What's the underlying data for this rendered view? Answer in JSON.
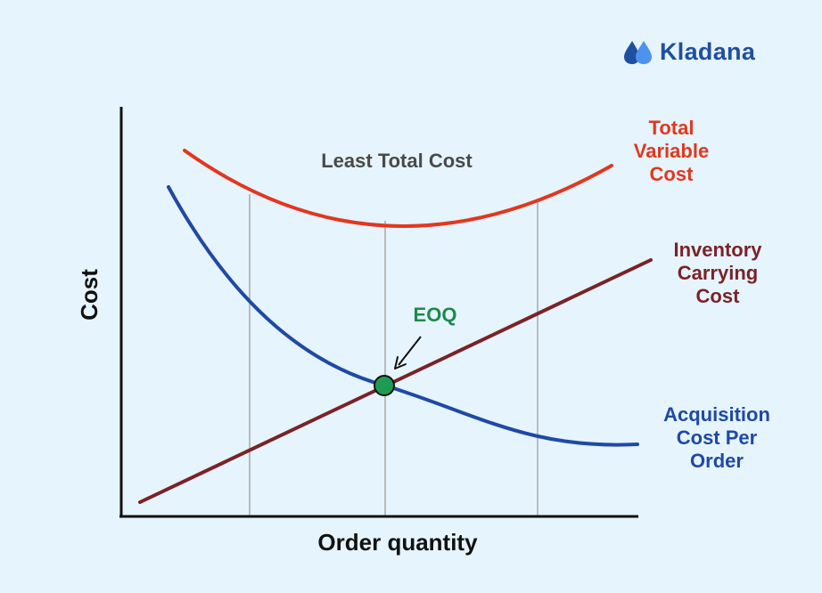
{
  "brand": {
    "name": "Kladana",
    "color": "#1f4fa0"
  },
  "chart_data": {
    "type": "line",
    "xlabel": "Order quantity",
    "ylabel": "Cost",
    "annotation": "Least Total Cost",
    "point_label": "EOQ",
    "grid": false,
    "legend": "inline-right",
    "series": [
      {
        "name": "Total Variable Cost",
        "label_lines": [
          "Total",
          "Variable",
          "Cost"
        ],
        "color": "#e2371e"
      },
      {
        "name": "Inventory Carrying Cost",
        "label_lines": [
          "Inventory",
          "Carrying",
          "Cost"
        ],
        "color": "#7a2327"
      },
      {
        "name": "Acquisition Cost Per Order",
        "label_lines": [
          "Acquisition",
          "Cost Per",
          "Order"
        ],
        "color": "#1f49a6"
      }
    ],
    "colors": {
      "eoq": "#1e9b53",
      "eoq_label": "#1e8a4d",
      "guides": "#a9a9a9",
      "axes": "#111111"
    }
  }
}
